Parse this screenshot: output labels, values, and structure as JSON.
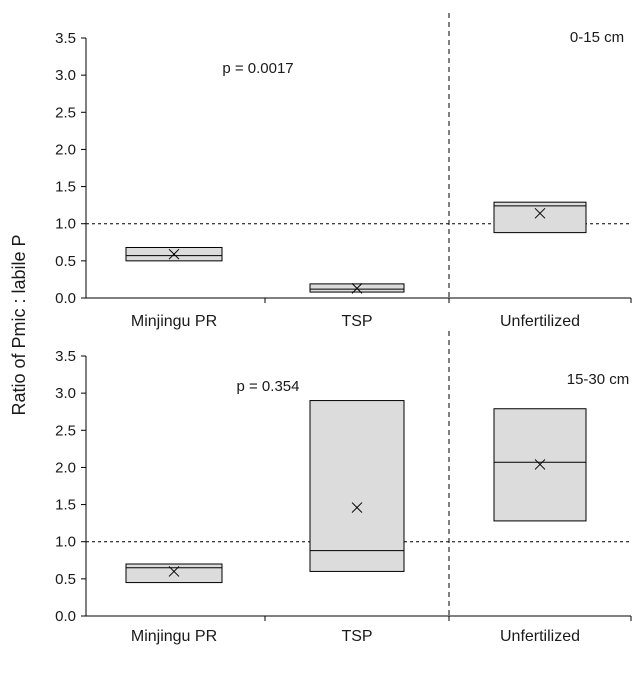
{
  "chart_data": [
    {
      "type": "box",
      "title": "",
      "depth_label": "0-15 cm",
      "p_label": "p = 0.0017",
      "ylabel": "Ratio of Pmic : labile P",
      "ylim": [
        0,
        3.5
      ],
      "yticks": [
        "0.0",
        "0.5",
        "1.0",
        "1.5",
        "2.0",
        "2.5",
        "3.0",
        "3.5"
      ],
      "reference_line": 1.0,
      "categories": [
        "Minjingu PR",
        "TSP",
        "Unfertilized"
      ],
      "boxes": [
        {
          "q1": 0.5,
          "median": 0.57,
          "q3": 0.68,
          "mean": 0.59
        },
        {
          "q1": 0.08,
          "median": 0.12,
          "q3": 0.19,
          "mean": 0.13
        },
        {
          "q1": 0.88,
          "median": 1.24,
          "q3": 1.29,
          "mean": 1.14
        }
      ]
    },
    {
      "type": "box",
      "title": "",
      "depth_label": "15-30 cm",
      "p_label": "p = 0.354",
      "ylabel": "Ratio of Pmic : labile P",
      "ylim": [
        0,
        3.5
      ],
      "yticks": [
        "0.0",
        "0.5",
        "1.0",
        "1.5",
        "2.0",
        "2.5",
        "3.0",
        "3.5"
      ],
      "reference_line": 1.0,
      "categories": [
        "Minjingu PR",
        "TSP",
        "Unfertilized"
      ],
      "boxes": [
        {
          "q1": 0.45,
          "median": 0.65,
          "q3": 0.7,
          "mean": 0.6
        },
        {
          "q1": 0.6,
          "median": 0.88,
          "q3": 2.9,
          "mean": 1.46
        },
        {
          "q1": 1.28,
          "median": 2.07,
          "q3": 2.79,
          "mean": 2.04
        }
      ]
    }
  ]
}
